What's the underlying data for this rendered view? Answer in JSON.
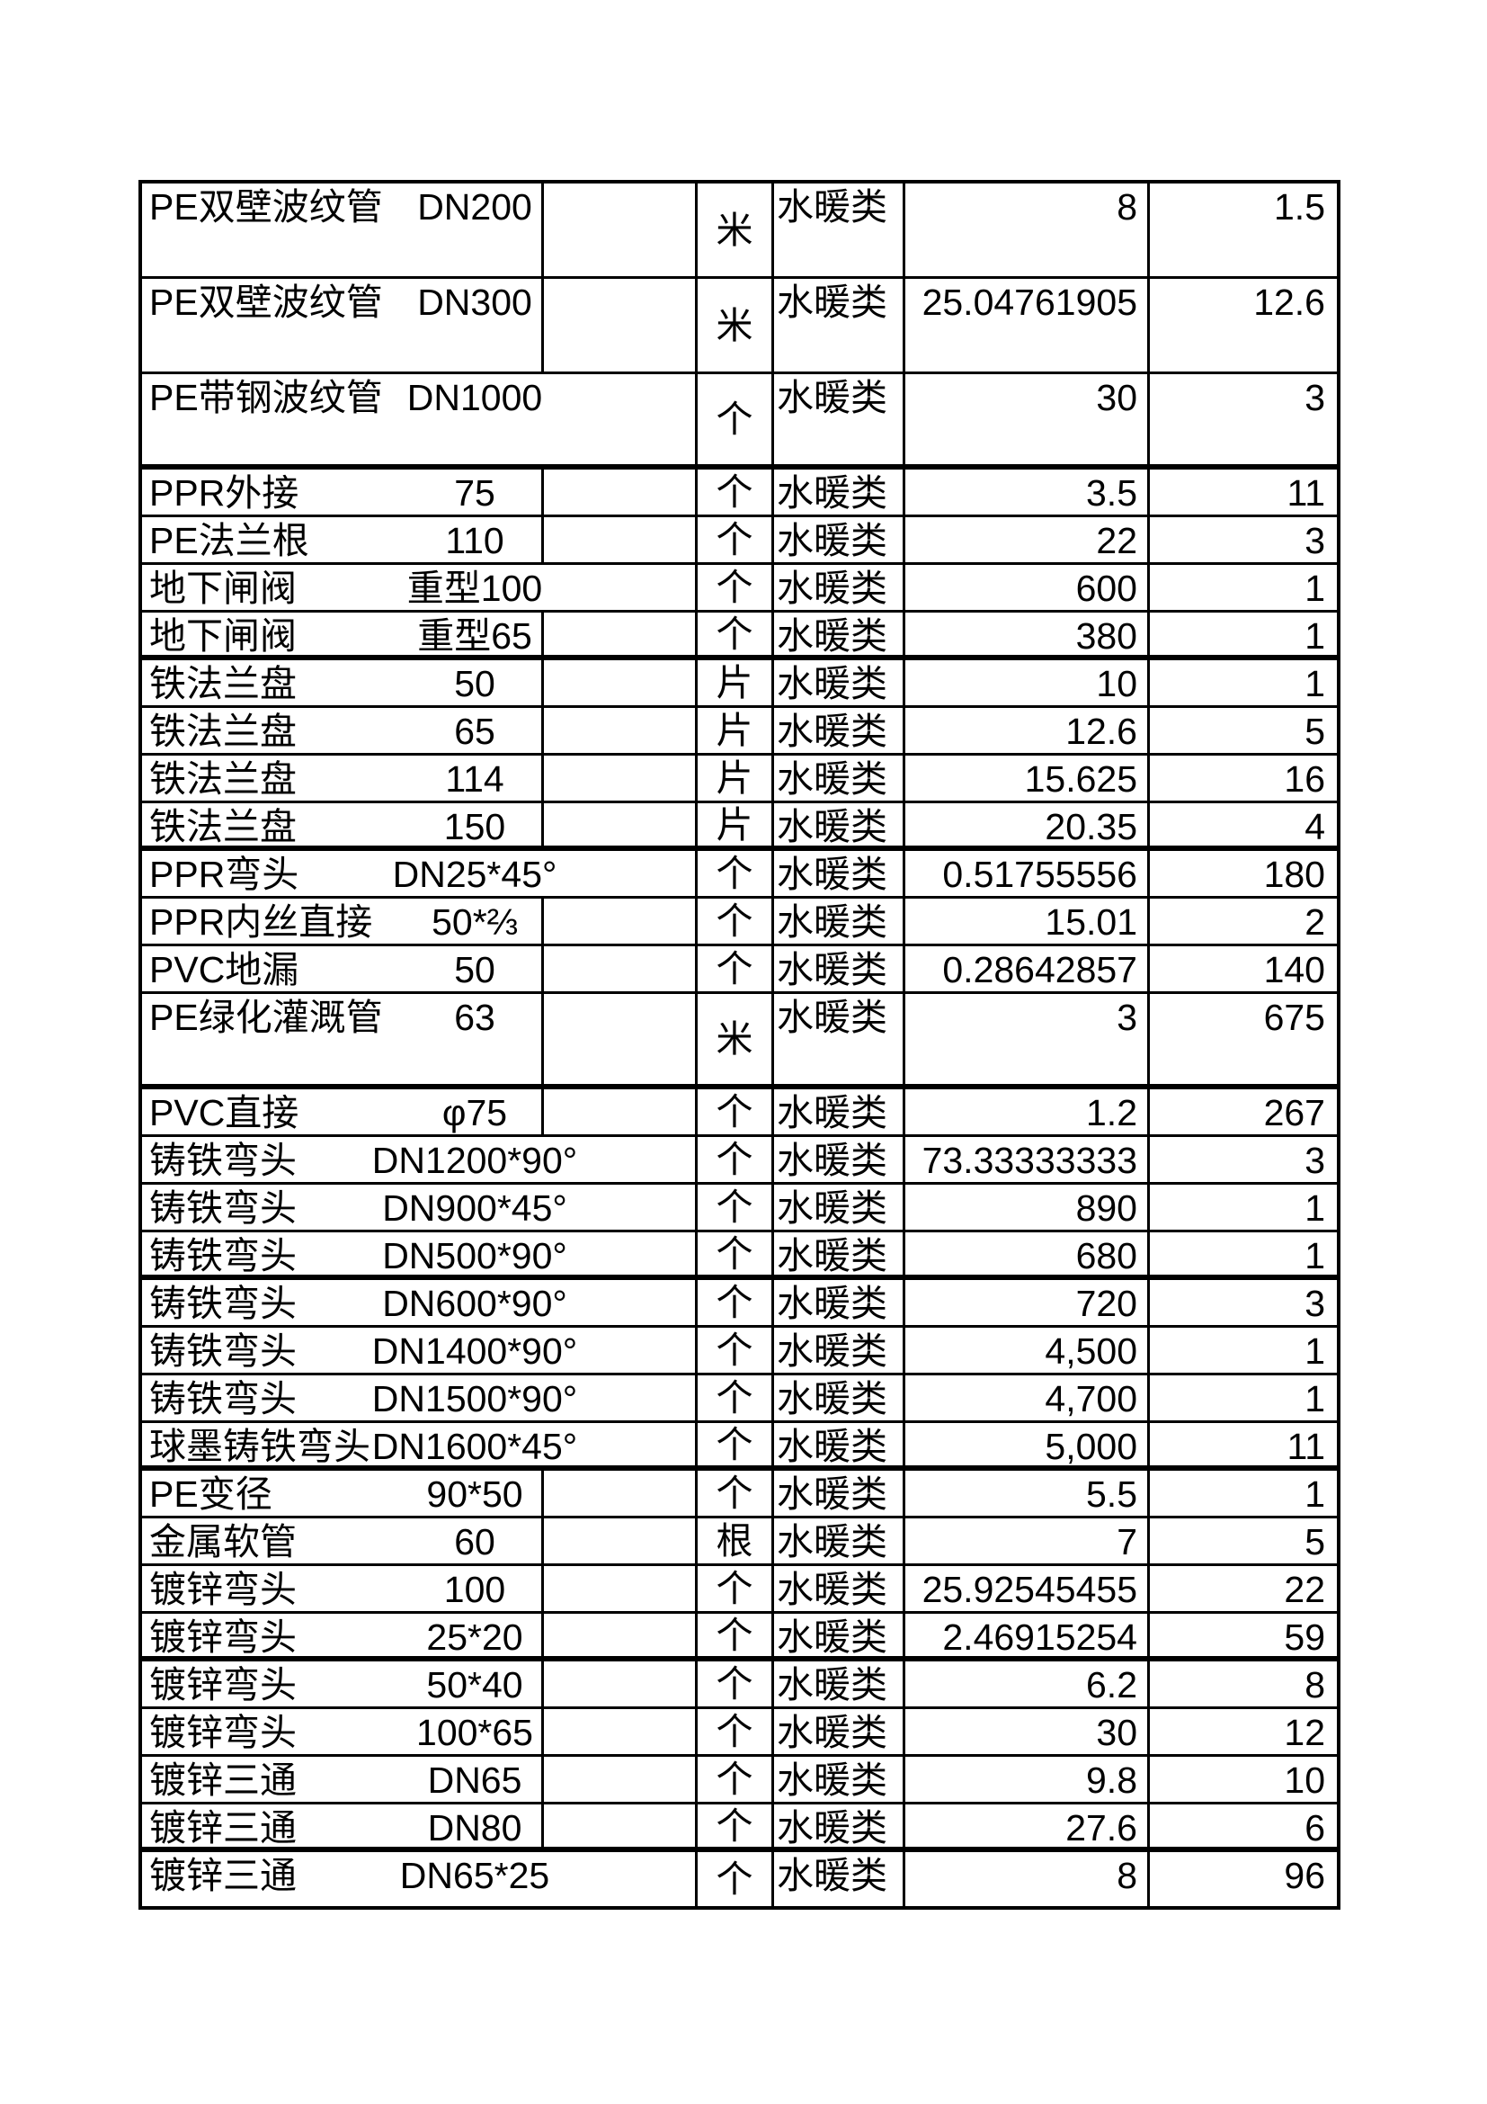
{
  "colors": {
    "border": "#000000",
    "text": "#000000",
    "background": "#ffffff"
  },
  "table": {
    "rows": [
      {
        "name": "PE双壁波纹管",
        "spec": "DN200",
        "unit": "米",
        "category": "水暖类",
        "price": "8",
        "qty": "1.5",
        "tall": true,
        "spec_overflows": false,
        "thick_bottom": false
      },
      {
        "name": "PE双壁波纹管",
        "spec": "DN300",
        "unit": "米",
        "category": "水暖类",
        "price": "25.04761905",
        "qty": "12.6",
        "tall": true,
        "spec_overflows": false,
        "thick_bottom": false
      },
      {
        "name": "PE带钢波纹管",
        "spec": "DN1000",
        "unit": "个",
        "category": "水暖类",
        "price": "30",
        "qty": "3",
        "tall": true,
        "spec_overflows": true,
        "thick_bottom": true
      },
      {
        "name": "PPR外接",
        "spec": "75",
        "unit": "个",
        "category": "水暖类",
        "price": "3.5",
        "qty": "11",
        "tall": false,
        "spec_overflows": false,
        "thick_bottom": false
      },
      {
        "name": "PE法兰根",
        "spec": "110",
        "unit": "个",
        "category": "水暖类",
        "price": "22",
        "qty": "3",
        "tall": false,
        "spec_overflows": false,
        "thick_bottom": false
      },
      {
        "name": "地下闸阀",
        "spec": "重型100",
        "unit": "个",
        "category": "水暖类",
        "price": "600",
        "qty": "1",
        "tall": false,
        "spec_overflows": true,
        "thick_bottom": false
      },
      {
        "name": "地下闸阀",
        "spec": "重型65",
        "unit": "个",
        "category": "水暖类",
        "price": "380",
        "qty": "1",
        "tall": false,
        "spec_overflows": false,
        "thick_bottom": true
      },
      {
        "name": "铁法兰盘",
        "spec": "50",
        "unit": "片",
        "category": "水暖类",
        "price": "10",
        "qty": "1",
        "tall": false,
        "spec_overflows": false,
        "thick_bottom": false
      },
      {
        "name": "铁法兰盘",
        "spec": "65",
        "unit": "片",
        "category": "水暖类",
        "price": "12.6",
        "qty": "5",
        "tall": false,
        "spec_overflows": false,
        "thick_bottom": false
      },
      {
        "name": "铁法兰盘",
        "spec": "114",
        "unit": "片",
        "category": "水暖类",
        "price": "15.625",
        "qty": "16",
        "tall": false,
        "spec_overflows": false,
        "thick_bottom": false
      },
      {
        "name": "铁法兰盘",
        "spec": "150",
        "unit": "片",
        "category": "水暖类",
        "price": "20.35",
        "qty": "4",
        "tall": false,
        "spec_overflows": false,
        "thick_bottom": true
      },
      {
        "name": "PPR弯头",
        "spec": "DN25*45°",
        "unit": "个",
        "category": "水暖类",
        "price": "0.51755556",
        "qty": "180",
        "tall": false,
        "spec_overflows": true,
        "thick_bottom": false
      },
      {
        "name": "PPR内丝直接",
        "spec": "50*⅔",
        "unit": "个",
        "category": "水暖类",
        "price": "15.01",
        "qty": "2",
        "tall": false,
        "spec_overflows": false,
        "thick_bottom": false
      },
      {
        "name": "PVC地漏",
        "spec": "50",
        "unit": "个",
        "category": "水暖类",
        "price": "0.28642857",
        "qty": "140",
        "tall": false,
        "spec_overflows": false,
        "thick_bottom": false
      },
      {
        "name": "PE绿化灌溉管",
        "spec": "63",
        "unit": "米",
        "category": "水暖类",
        "price": "3",
        "qty": "675",
        "tall": true,
        "spec_overflows": false,
        "thick_bottom": true
      },
      {
        "name": "PVC直接",
        "spec": "φ75",
        "unit": "个",
        "category": "水暖类",
        "price": "1.2",
        "qty": "267",
        "tall": false,
        "spec_overflows": false,
        "thick_bottom": false
      },
      {
        "name": "铸铁弯头",
        "spec": "DN1200*90°",
        "unit": "个",
        "category": "水暖类",
        "price": "73.33333333",
        "qty": "3",
        "tall": false,
        "spec_overflows": true,
        "thick_bottom": false
      },
      {
        "name": "铸铁弯头",
        "spec": "DN900*45°",
        "unit": "个",
        "category": "水暖类",
        "price": "890",
        "qty": "1",
        "tall": false,
        "spec_overflows": true,
        "thick_bottom": false
      },
      {
        "name": "铸铁弯头",
        "spec": "DN500*90°",
        "unit": "个",
        "category": "水暖类",
        "price": "680",
        "qty": "1",
        "tall": false,
        "spec_overflows": true,
        "thick_bottom": true
      },
      {
        "name": "铸铁弯头",
        "spec": "DN600*90°",
        "unit": "个",
        "category": "水暖类",
        "price": "720",
        "qty": "3",
        "tall": false,
        "spec_overflows": true,
        "thick_bottom": false
      },
      {
        "name": "铸铁弯头",
        "spec": "DN1400*90°",
        "unit": "个",
        "category": "水暖类",
        "price": "4,500",
        "qty": "1",
        "tall": false,
        "spec_overflows": true,
        "thick_bottom": false
      },
      {
        "name": "铸铁弯头",
        "spec": "DN1500*90°",
        "unit": "个",
        "category": "水暖类",
        "price": "4,700",
        "qty": "1",
        "tall": false,
        "spec_overflows": true,
        "thick_bottom": false
      },
      {
        "name": "球墨铸铁弯头",
        "spec": "DN1600*45°",
        "unit": "个",
        "category": "水暖类",
        "price": "5,000",
        "qty": "11",
        "tall": false,
        "spec_overflows": true,
        "thick_bottom": true
      },
      {
        "name": "PE变径",
        "spec": "90*50",
        "unit": "个",
        "category": "水暖类",
        "price": "5.5",
        "qty": "1",
        "tall": false,
        "spec_overflows": false,
        "thick_bottom": false
      },
      {
        "name": "金属软管",
        "spec": "60",
        "unit": "根",
        "category": "水暖类",
        "price": "7",
        "qty": "5",
        "tall": false,
        "spec_overflows": false,
        "thick_bottom": false
      },
      {
        "name": "镀锌弯头",
        "spec": "100",
        "unit": "个",
        "category": "水暖类",
        "price": "25.92545455",
        "qty": "22",
        "tall": false,
        "spec_overflows": false,
        "thick_bottom": false
      },
      {
        "name": "镀锌弯头",
        "spec": "25*20",
        "unit": "个",
        "category": "水暖类",
        "price": "2.46915254",
        "qty": "59",
        "tall": false,
        "spec_overflows": false,
        "thick_bottom": true
      },
      {
        "name": "镀锌弯头",
        "spec": "50*40",
        "unit": "个",
        "category": "水暖类",
        "price": "6.2",
        "qty": "8",
        "tall": false,
        "spec_overflows": false,
        "thick_bottom": false
      },
      {
        "name": "镀锌弯头",
        "spec": "100*65",
        "unit": "个",
        "category": "水暖类",
        "price": "30",
        "qty": "12",
        "tall": false,
        "spec_overflows": false,
        "thick_bottom": false
      },
      {
        "name": "镀锌三通",
        "spec": "DN65",
        "unit": "个",
        "category": "水暖类",
        "price": "9.8",
        "qty": "10",
        "tall": false,
        "spec_overflows": false,
        "thick_bottom": false
      },
      {
        "name": "镀锌三通",
        "spec": "DN80",
        "unit": "个",
        "category": "水暖类",
        "price": "27.6",
        "qty": "6",
        "tall": false,
        "spec_overflows": false,
        "thick_bottom": true
      },
      {
        "name": "镀锌三通",
        "spec": "DN65*25",
        "unit": "个",
        "category": "水暖类",
        "price": "8",
        "qty": "96",
        "tall": false,
        "spec_overflows": true,
        "thick_bottom": false
      }
    ]
  }
}
